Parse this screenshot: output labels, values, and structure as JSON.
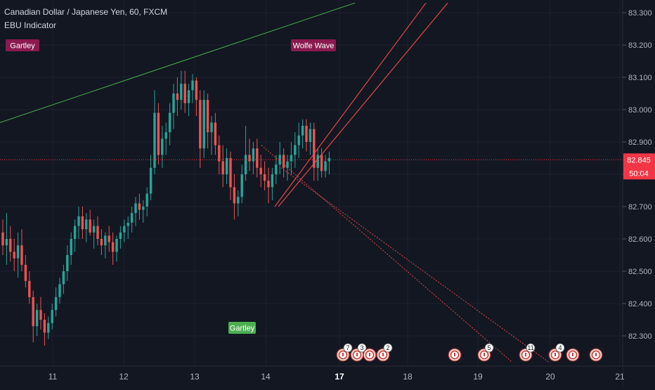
{
  "header": {
    "title": "Canadian Dollar / Japanese Yen, 60, FXCM",
    "indicator": "EBU Indicator"
  },
  "colors": {
    "background": "#131722",
    "up": "#26a69a",
    "down": "#ef5350",
    "trendline_green": "#4caf50",
    "wolfe_lines": "#e04848",
    "price_label": "#f23645",
    "label_purple": "#8a1a4f",
    "label_green": "#4caf50",
    "axis_text": "#b2b5be"
  },
  "chart_data": {
    "type": "candlestick",
    "x_ticks": [
      "11",
      "12",
      "13",
      "14",
      "17",
      "18",
      "19",
      "20",
      "21"
    ],
    "x_ticks_bold": [
      "17"
    ],
    "y_ticks": [
      "83.300",
      "83.200",
      "83.100",
      "83.000",
      "82.900",
      "82.800",
      "82.700",
      "82.600",
      "82.500",
      "82.400",
      "82.300"
    ],
    "ylim": [
      82.22,
      83.33
    ],
    "last_price": "82.845",
    "countdown": "50:04",
    "annotations": [
      {
        "text": "Gartley",
        "style": "purple"
      },
      {
        "text": "Wolfe Wave",
        "style": "purple"
      },
      {
        "text": "Gartley",
        "style": "green"
      }
    ],
    "event_markers": [
      "7",
      "3",
      "",
      "2",
      "",
      "5",
      "11",
      "4",
      "",
      ""
    ],
    "candles": [
      {
        "o": 82.62,
        "h": 82.66,
        "l": 82.55,
        "c": 82.58
      },
      {
        "o": 82.58,
        "h": 82.68,
        "l": 82.52,
        "c": 82.6
      },
      {
        "o": 82.6,
        "h": 82.64,
        "l": 82.53,
        "c": 82.56
      },
      {
        "o": 82.56,
        "h": 82.6,
        "l": 82.5,
        "c": 82.54
      },
      {
        "o": 82.54,
        "h": 82.62,
        "l": 82.48,
        "c": 82.58
      },
      {
        "o": 82.58,
        "h": 82.63,
        "l": 82.5,
        "c": 82.52
      },
      {
        "o": 82.52,
        "h": 82.55,
        "l": 82.45,
        "c": 82.47
      },
      {
        "o": 82.47,
        "h": 82.5,
        "l": 82.4,
        "c": 82.42
      },
      {
        "o": 82.42,
        "h": 82.44,
        "l": 82.28,
        "c": 82.33
      },
      {
        "o": 82.33,
        "h": 82.4,
        "l": 82.3,
        "c": 82.38
      },
      {
        "o": 82.38,
        "h": 82.42,
        "l": 82.32,
        "c": 82.35
      },
      {
        "o": 82.35,
        "h": 82.37,
        "l": 82.27,
        "c": 82.31
      },
      {
        "o": 82.31,
        "h": 82.36,
        "l": 82.29,
        "c": 82.34
      },
      {
        "o": 82.34,
        "h": 82.4,
        "l": 82.32,
        "c": 82.38
      },
      {
        "o": 82.38,
        "h": 82.45,
        "l": 82.36,
        "c": 82.42
      },
      {
        "o": 82.42,
        "h": 82.48,
        "l": 82.4,
        "c": 82.46
      },
      {
        "o": 82.46,
        "h": 82.52,
        "l": 82.43,
        "c": 82.5
      },
      {
        "o": 82.5,
        "h": 82.58,
        "l": 82.47,
        "c": 82.55
      },
      {
        "o": 82.55,
        "h": 82.62,
        "l": 82.52,
        "c": 82.6
      },
      {
        "o": 82.6,
        "h": 82.66,
        "l": 82.56,
        "c": 82.64
      },
      {
        "o": 82.64,
        "h": 82.7,
        "l": 82.6,
        "c": 82.67
      },
      {
        "o": 82.67,
        "h": 82.7,
        "l": 82.6,
        "c": 82.63
      },
      {
        "o": 82.63,
        "h": 82.68,
        "l": 82.59,
        "c": 82.66
      },
      {
        "o": 82.66,
        "h": 82.69,
        "l": 82.61,
        "c": 82.62
      },
      {
        "o": 82.62,
        "h": 82.66,
        "l": 82.57,
        "c": 82.64
      },
      {
        "o": 82.64,
        "h": 82.67,
        "l": 82.58,
        "c": 82.6
      },
      {
        "o": 82.6,
        "h": 82.63,
        "l": 82.55,
        "c": 82.58
      },
      {
        "o": 82.58,
        "h": 82.62,
        "l": 82.54,
        "c": 82.61
      },
      {
        "o": 82.61,
        "h": 82.64,
        "l": 82.56,
        "c": 82.59
      },
      {
        "o": 82.59,
        "h": 82.62,
        "l": 82.52,
        "c": 82.56
      },
      {
        "o": 82.56,
        "h": 82.61,
        "l": 82.53,
        "c": 82.6
      },
      {
        "o": 82.6,
        "h": 82.64,
        "l": 82.57,
        "c": 82.62
      },
      {
        "o": 82.62,
        "h": 82.66,
        "l": 82.59,
        "c": 82.64
      },
      {
        "o": 82.64,
        "h": 82.67,
        "l": 82.6,
        "c": 82.65
      },
      {
        "o": 82.65,
        "h": 82.7,
        "l": 82.62,
        "c": 82.68
      },
      {
        "o": 82.68,
        "h": 82.73,
        "l": 82.64,
        "c": 82.71
      },
      {
        "o": 82.71,
        "h": 82.74,
        "l": 82.66,
        "c": 82.69
      },
      {
        "o": 82.69,
        "h": 82.72,
        "l": 82.65,
        "c": 82.7
      },
      {
        "o": 82.7,
        "h": 82.76,
        "l": 82.67,
        "c": 82.74
      },
      {
        "o": 82.74,
        "h": 82.86,
        "l": 82.72,
        "c": 82.82
      },
      {
        "o": 82.82,
        "h": 83.06,
        "l": 82.8,
        "c": 82.99
      },
      {
        "o": 82.99,
        "h": 83.02,
        "l": 82.83,
        "c": 82.86
      },
      {
        "o": 82.86,
        "h": 82.95,
        "l": 82.82,
        "c": 82.91
      },
      {
        "o": 82.91,
        "h": 82.96,
        "l": 82.86,
        "c": 82.93
      },
      {
        "o": 82.93,
        "h": 83.02,
        "l": 82.89,
        "c": 82.99
      },
      {
        "o": 82.99,
        "h": 83.08,
        "l": 82.94,
        "c": 83.05
      },
      {
        "o": 83.05,
        "h": 83.1,
        "l": 82.98,
        "c": 83.03
      },
      {
        "o": 83.03,
        "h": 83.12,
        "l": 83.0,
        "c": 83.08
      },
      {
        "o": 83.08,
        "h": 83.12,
        "l": 82.99,
        "c": 83.02
      },
      {
        "o": 83.02,
        "h": 83.08,
        "l": 82.98,
        "c": 83.06
      },
      {
        "o": 83.06,
        "h": 83.11,
        "l": 83.02,
        "c": 83.09
      },
      {
        "o": 83.09,
        "h": 83.1,
        "l": 82.98,
        "c": 83.03
      },
      {
        "o": 83.03,
        "h": 83.06,
        "l": 82.82,
        "c": 82.88
      },
      {
        "o": 82.88,
        "h": 83.06,
        "l": 82.85,
        "c": 83.03
      },
      {
        "o": 83.03,
        "h": 83.05,
        "l": 82.88,
        "c": 82.93
      },
      {
        "o": 82.93,
        "h": 82.98,
        "l": 82.86,
        "c": 82.96
      },
      {
        "o": 82.96,
        "h": 82.99,
        "l": 82.86,
        "c": 82.89
      },
      {
        "o": 82.89,
        "h": 82.92,
        "l": 82.8,
        "c": 82.84
      },
      {
        "o": 82.84,
        "h": 82.89,
        "l": 82.76,
        "c": 82.8
      },
      {
        "o": 82.8,
        "h": 82.88,
        "l": 82.77,
        "c": 82.85
      },
      {
        "o": 82.85,
        "h": 82.87,
        "l": 82.72,
        "c": 82.76
      },
      {
        "o": 82.76,
        "h": 82.8,
        "l": 82.66,
        "c": 82.71
      },
      {
        "o": 82.71,
        "h": 82.75,
        "l": 82.67,
        "c": 82.73
      },
      {
        "o": 82.73,
        "h": 82.83,
        "l": 82.71,
        "c": 82.8
      },
      {
        "o": 82.8,
        "h": 82.95,
        "l": 82.78,
        "c": 82.86
      },
      {
        "o": 82.86,
        "h": 82.91,
        "l": 82.81,
        "c": 82.84
      },
      {
        "o": 82.84,
        "h": 82.9,
        "l": 82.8,
        "c": 82.88
      },
      {
        "o": 82.88,
        "h": 82.91,
        "l": 82.79,
        "c": 82.82
      },
      {
        "o": 82.82,
        "h": 82.86,
        "l": 82.76,
        "c": 82.8
      },
      {
        "o": 82.8,
        "h": 82.84,
        "l": 82.75,
        "c": 82.78
      },
      {
        "o": 82.78,
        "h": 82.82,
        "l": 82.71,
        "c": 82.76
      },
      {
        "o": 82.76,
        "h": 82.82,
        "l": 82.72,
        "c": 82.8
      },
      {
        "o": 82.8,
        "h": 82.86,
        "l": 82.77,
        "c": 82.83
      },
      {
        "o": 82.83,
        "h": 82.9,
        "l": 82.8,
        "c": 82.86
      },
      {
        "o": 82.86,
        "h": 82.88,
        "l": 82.79,
        "c": 82.82
      },
      {
        "o": 82.82,
        "h": 82.86,
        "l": 82.78,
        "c": 82.84
      },
      {
        "o": 82.84,
        "h": 82.9,
        "l": 82.8,
        "c": 82.86
      },
      {
        "o": 82.86,
        "h": 82.93,
        "l": 82.82,
        "c": 82.89
      },
      {
        "o": 82.89,
        "h": 82.96,
        "l": 82.85,
        "c": 82.92
      },
      {
        "o": 82.92,
        "h": 82.97,
        "l": 82.88,
        "c": 82.95
      },
      {
        "o": 82.95,
        "h": 82.97,
        "l": 82.87,
        "c": 82.9
      },
      {
        "o": 82.9,
        "h": 82.96,
        "l": 82.86,
        "c": 82.94
      },
      {
        "o": 82.94,
        "h": 82.96,
        "l": 82.78,
        "c": 82.82
      },
      {
        "o": 82.82,
        "h": 82.88,
        "l": 82.78,
        "c": 82.86
      },
      {
        "o": 82.86,
        "h": 82.88,
        "l": 82.79,
        "c": 82.81
      },
      {
        "o": 82.81,
        "h": 82.86,
        "l": 82.79,
        "c": 82.84
      },
      {
        "o": 82.84,
        "h": 82.87,
        "l": 82.8,
        "c": 82.85
      }
    ]
  }
}
